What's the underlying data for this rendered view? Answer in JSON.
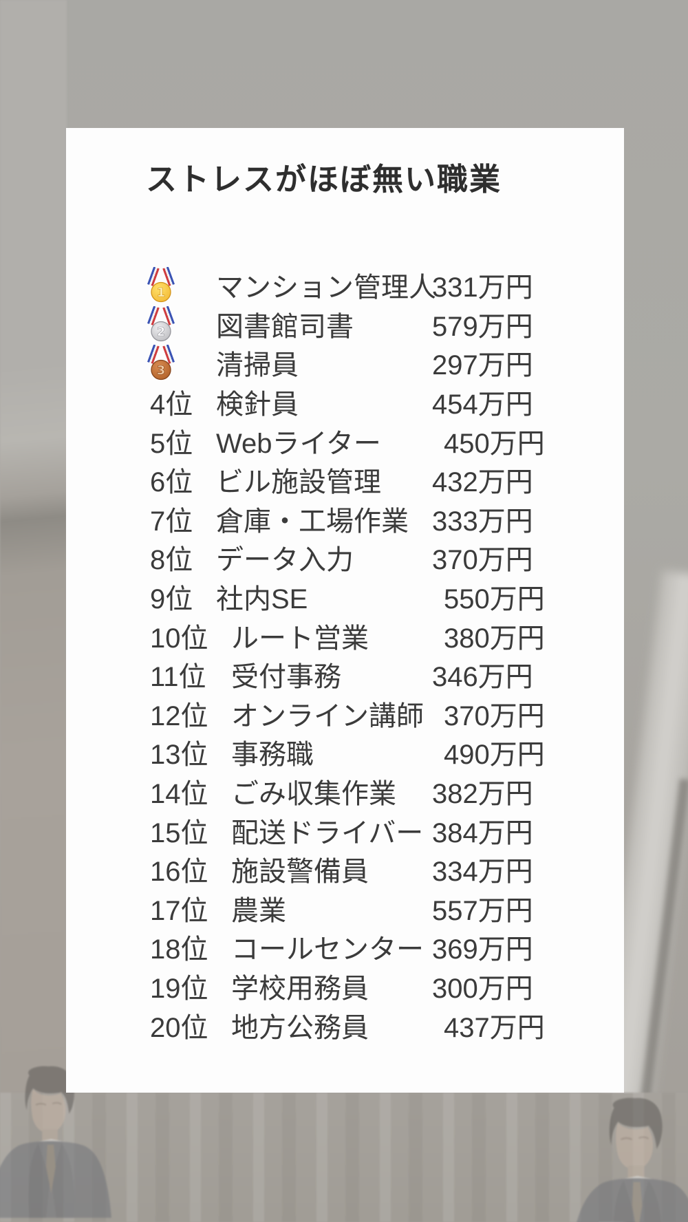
{
  "chart_data": {
    "type": "table",
    "title": "ストレスがほぼ無い職業",
    "unit": "万円",
    "rows": [
      {
        "rank": 1,
        "medal": "gold",
        "medal_number": "1",
        "rank_label": "",
        "job": "マンション管理人",
        "salary_value": 331,
        "salary_label": "331万円",
        "salary_indent": false
      },
      {
        "rank": 2,
        "medal": "silver",
        "medal_number": "2",
        "rank_label": "",
        "job": "図書館司書",
        "salary_value": 579,
        "salary_label": "579万円",
        "salary_indent": false
      },
      {
        "rank": 3,
        "medal": "bronze",
        "medal_number": "3",
        "rank_label": "",
        "job": "清掃員",
        "salary_value": 297,
        "salary_label": "297万円",
        "salary_indent": false
      },
      {
        "rank": 4,
        "medal": null,
        "medal_number": null,
        "rank_label": "4位",
        "job": "検針員",
        "salary_value": 454,
        "salary_label": "454万円",
        "salary_indent": false
      },
      {
        "rank": 5,
        "medal": null,
        "medal_number": null,
        "rank_label": "5位",
        "job": "Webライター",
        "salary_value": 450,
        "salary_label": "450万円",
        "salary_indent": true
      },
      {
        "rank": 6,
        "medal": null,
        "medal_number": null,
        "rank_label": "6位",
        "job": "ビル施設管理",
        "salary_value": 432,
        "salary_label": "432万円",
        "salary_indent": false
      },
      {
        "rank": 7,
        "medal": null,
        "medal_number": null,
        "rank_label": "7位",
        "job": "倉庫・工場作業",
        "salary_value": 333,
        "salary_label": "333万円",
        "salary_indent": false
      },
      {
        "rank": 8,
        "medal": null,
        "medal_number": null,
        "rank_label": "8位",
        "job": "データ入力",
        "salary_value": 370,
        "salary_label": "370万円",
        "salary_indent": false
      },
      {
        "rank": 9,
        "medal": null,
        "medal_number": null,
        "rank_label": "9位",
        "job": "社内SE",
        "salary_value": 550,
        "salary_label": "550万円",
        "salary_indent": true
      },
      {
        "rank": 10,
        "medal": null,
        "medal_number": null,
        "rank_label": "10位",
        "job": "ルート営業",
        "salary_value": 380,
        "salary_label": "380万円",
        "salary_indent": true
      },
      {
        "rank": 11,
        "medal": null,
        "medal_number": null,
        "rank_label": "11位",
        "job": "受付事務",
        "salary_value": 346,
        "salary_label": "346万円",
        "salary_indent": false
      },
      {
        "rank": 12,
        "medal": null,
        "medal_number": null,
        "rank_label": "12位",
        "job": "オンライン講師",
        "salary_value": 370,
        "salary_label": "370万円",
        "salary_indent": true
      },
      {
        "rank": 13,
        "medal": null,
        "medal_number": null,
        "rank_label": "13位",
        "job": "事務職",
        "salary_value": 490,
        "salary_label": "490万円",
        "salary_indent": true
      },
      {
        "rank": 14,
        "medal": null,
        "medal_number": null,
        "rank_label": "14位",
        "job": "ごみ収集作業",
        "salary_value": 382,
        "salary_label": "382万円",
        "salary_indent": false
      },
      {
        "rank": 15,
        "medal": null,
        "medal_number": null,
        "rank_label": "15位",
        "job": "配送ドライバー",
        "salary_value": 384,
        "salary_label": "384万円",
        "salary_indent": false
      },
      {
        "rank": 16,
        "medal": null,
        "medal_number": null,
        "rank_label": "16位",
        "job": "施設警備員",
        "salary_value": 334,
        "salary_label": "334万円",
        "salary_indent": false
      },
      {
        "rank": 17,
        "medal": null,
        "medal_number": null,
        "rank_label": "17位",
        "job": "農業",
        "salary_value": 557,
        "salary_label": "557万円",
        "salary_indent": false
      },
      {
        "rank": 18,
        "medal": null,
        "medal_number": null,
        "rank_label": "18位",
        "job": "コールセンター",
        "salary_value": 369,
        "salary_label": "369万円",
        "salary_indent": false
      },
      {
        "rank": 19,
        "medal": null,
        "medal_number": null,
        "rank_label": "19位",
        "job": "学校用務員",
        "salary_value": 300,
        "salary_label": "300万円",
        "salary_indent": false
      },
      {
        "rank": 20,
        "medal": null,
        "medal_number": null,
        "rank_label": "20位",
        "job": "地方公務員",
        "salary_value": 437,
        "salary_label": "437万円",
        "salary_indent": true
      }
    ]
  },
  "colors": {
    "card_background": "#fdfdfd",
    "title_text": "#2e2e2e",
    "list_text": "#3b3b3b",
    "photo_gray": "#a9a8a4"
  },
  "medals": {
    "gold": {
      "disc_light": "#ffe06a",
      "disc_dark": "#f0b22c",
      "rim": "#d29218",
      "number_fill": "#fdf0bd"
    },
    "silver": {
      "disc_light": "#ededef",
      "disc_dark": "#b4b4b8",
      "rim": "#94949a",
      "number_fill": "#fbfbfd"
    },
    "bronze": {
      "disc_light": "#d78a50",
      "disc_dark": "#aa5a22",
      "rim": "#84431a",
      "number_fill": "#f3cfa9"
    }
  },
  "ribbon": {
    "blue": "#3a53b4",
    "white": "#f1f1f3",
    "red": "#cf3d3f"
  }
}
